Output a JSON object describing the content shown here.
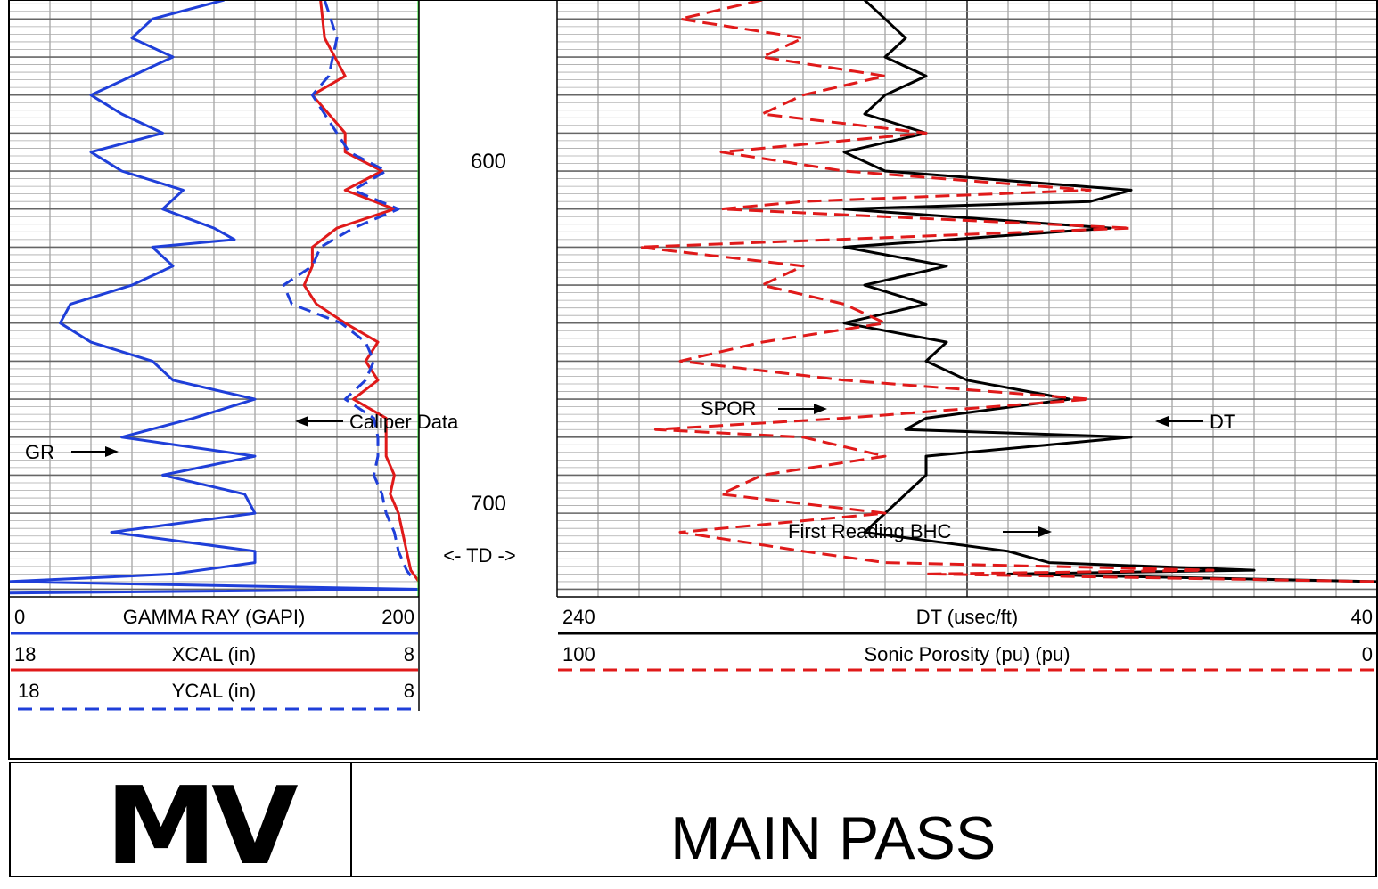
{
  "depth_labels": [
    "600",
    "700"
  ],
  "td_label": "<- TD ->",
  "annotations": {
    "gr": "GR",
    "caliper": "Caliper Data",
    "spor": "SPOR",
    "dt": "DT",
    "first_reading": "First Reading BHC"
  },
  "headers": {
    "left": [
      {
        "min": "0",
        "name": "GAMMA RAY (GAPI)",
        "max": "200",
        "color": "#1f3fd9",
        "style": "solid"
      },
      {
        "min": "18",
        "name": "XCAL (in)",
        "max": "8",
        "color": "#e01a1a",
        "style": "solid"
      },
      {
        "min": "18",
        "name": "YCAL (in)",
        "max": "8",
        "color": "#1f3fd9",
        "style": "dashed"
      }
    ],
    "right": [
      {
        "min": "240",
        "name": "DT (usec/ft)",
        "max": "40",
        "color": "#000000",
        "style": "solid"
      },
      {
        "min": "100",
        "name": "Sonic Porosity (pu) (pu)",
        "max": "0",
        "color": "#e01a1a",
        "style": "dashed"
      }
    ]
  },
  "footer": {
    "logo": "MV",
    "title": "MAIN PASS"
  },
  "colors": {
    "gr": "#1f3fd9",
    "xcal": "#e01a1a",
    "ycal": "#1f3fd9",
    "bit_size": "#22dd22",
    "dt": "#000000",
    "spor": "#e01a1a",
    "grid": "#888888",
    "grid_major": "#666666"
  },
  "chart_data": {
    "type": "line",
    "depth_unit": "ft",
    "depth_range": [
      555,
      712
    ],
    "total_depth": 715,
    "tracks": [
      {
        "series": [
          {
            "name": "GAMMA RAY (GAPI)",
            "scale": [
              0,
              200
            ],
            "points": [
              [
                555,
                105
              ],
              [
                560,
                70
              ],
              [
                565,
                60
              ],
              [
                570,
                80
              ],
              [
                575,
                60
              ],
              [
                580,
                40
              ],
              [
                585,
                55
              ],
              [
                590,
                75
              ],
              [
                595,
                40
              ],
              [
                600,
                55
              ],
              [
                605,
                85
              ],
              [
                610,
                75
              ],
              [
                615,
                100
              ],
              [
                618,
                110
              ],
              [
                620,
                70
              ],
              [
                625,
                80
              ],
              [
                630,
                60
              ],
              [
                635,
                30
              ],
              [
                640,
                25
              ],
              [
                645,
                40
              ],
              [
                650,
                70
              ],
              [
                655,
                80
              ],
              [
                660,
                120
              ],
              [
                665,
                90
              ],
              [
                670,
                55
              ],
              [
                675,
                120
              ],
              [
                680,
                75
              ],
              [
                685,
                115
              ],
              [
                690,
                120
              ],
              [
                695,
                50
              ],
              [
                700,
                120
              ],
              [
                703,
                120
              ],
              [
                706,
                80
              ],
              [
                708,
                0
              ],
              [
                710,
                200
              ],
              [
                711,
                0
              ]
            ]
          },
          {
            "name": "XCAL (in)",
            "scale": [
              18,
              8
            ],
            "points": [
              [
                555,
                10.4
              ],
              [
                565,
                10.3
              ],
              [
                575,
                9.8
              ],
              [
                580,
                10.6
              ],
              [
                585,
                10.2
              ],
              [
                590,
                9.8
              ],
              [
                595,
                9.8
              ],
              [
                600,
                8.9
              ],
              [
                605,
                9.8
              ],
              [
                610,
                8.6
              ],
              [
                615,
                10.0
              ],
              [
                620,
                10.6
              ],
              [
                625,
                10.6
              ],
              [
                630,
                10.8
              ],
              [
                635,
                10.5
              ],
              [
                640,
                9.8
              ],
              [
                645,
                9.0
              ],
              [
                650,
                9.3
              ],
              [
                655,
                9.0
              ],
              [
                660,
                9.6
              ],
              [
                665,
                8.8
              ],
              [
                670,
                8.8
              ],
              [
                675,
                8.8
              ],
              [
                680,
                8.6
              ],
              [
                685,
                8.7
              ],
              [
                690,
                8.5
              ],
              [
                695,
                8.4
              ],
              [
                700,
                8.3
              ],
              [
                705,
                8.2
              ],
              [
                708,
                8.0
              ]
            ]
          },
          {
            "name": "YCAL (in)",
            "scale": [
              18,
              8
            ],
            "points": [
              [
                555,
                10.3
              ],
              [
                565,
                10.0
              ],
              [
                575,
                10.2
              ],
              [
                580,
                10.6
              ],
              [
                585,
                10.3
              ],
              [
                590,
                10.0
              ],
              [
                595,
                9.7
              ],
              [
                600,
                8.8
              ],
              [
                605,
                9.6
              ],
              [
                610,
                8.5
              ],
              [
                615,
                9.6
              ],
              [
                620,
                10.4
              ],
              [
                625,
                10.6
              ],
              [
                630,
                11.3
              ],
              [
                635,
                11.1
              ],
              [
                640,
                9.9
              ],
              [
                645,
                9.3
              ],
              [
                650,
                9.1
              ],
              [
                655,
                9.3
              ],
              [
                660,
                9.8
              ],
              [
                665,
                9.1
              ],
              [
                670,
                9.0
              ],
              [
                675,
                9.0
              ],
              [
                680,
                9.1
              ],
              [
                685,
                8.9
              ],
              [
                690,
                8.8
              ],
              [
                695,
                8.6
              ],
              [
                700,
                8.5
              ],
              [
                705,
                8.3
              ],
              [
                708,
                8.1
              ]
            ]
          },
          {
            "name": "Bit size",
            "scale": [
              18,
              8
            ],
            "points": [
              [
                555,
                8
              ],
              [
                712,
                8
              ]
            ]
          }
        ]
      },
      {
        "series": [
          {
            "name": "DT (usec/ft)",
            "scale": [
              240,
              40
            ],
            "points": [
              [
                555,
                165
              ],
              [
                560,
                160
              ],
              [
                565,
                155
              ],
              [
                570,
                160
              ],
              [
                575,
                150
              ],
              [
                580,
                160
              ],
              [
                585,
                165
              ],
              [
                590,
                150
              ],
              [
                595,
                170
              ],
              [
                600,
                160
              ],
              [
                605,
                100
              ],
              [
                608,
                110
              ],
              [
                610,
                170
              ],
              [
                615,
                105
              ],
              [
                620,
                170
              ],
              [
                625,
                145
              ],
              [
                630,
                165
              ],
              [
                635,
                150
              ],
              [
                640,
                170
              ],
              [
                645,
                145
              ],
              [
                650,
                150
              ],
              [
                655,
                140
              ],
              [
                660,
                115
              ],
              [
                665,
                150
              ],
              [
                668,
                155
              ],
              [
                670,
                100
              ],
              [
                675,
                150
              ],
              [
                680,
                150
              ],
              [
                685,
                155
              ],
              [
                690,
                160
              ],
              [
                695,
                165
              ],
              [
                700,
                130
              ],
              [
                703,
                120
              ],
              [
                705,
                70
              ],
              [
                706,
                130
              ],
              [
                708,
                40
              ]
            ]
          },
          {
            "name": "Sonic Porosity (pu) (pu)",
            "scale": [
              100,
              0
            ],
            "points": [
              [
                555,
                75
              ],
              [
                560,
                85
              ],
              [
                565,
                70
              ],
              [
                570,
                75
              ],
              [
                575,
                60
              ],
              [
                580,
                70
              ],
              [
                585,
                75
              ],
              [
                590,
                55
              ],
              [
                595,
                80
              ],
              [
                600,
                65
              ],
              [
                605,
                35
              ],
              [
                608,
                70
              ],
              [
                610,
                80
              ],
              [
                615,
                30
              ],
              [
                620,
                90
              ],
              [
                625,
                70
              ],
              [
                630,
                75
              ],
              [
                635,
                65
              ],
              [
                640,
                60
              ],
              [
                645,
                75
              ],
              [
                650,
                85
              ],
              [
                655,
                65
              ],
              [
                660,
                35
              ],
              [
                665,
                65
              ],
              [
                668,
                88
              ],
              [
                670,
                70
              ],
              [
                675,
                60
              ],
              [
                680,
                75
              ],
              [
                685,
                80
              ],
              [
                690,
                60
              ],
              [
                695,
                85
              ],
              [
                700,
                70
              ],
              [
                703,
                60
              ],
              [
                705,
                20
              ],
              [
                706,
                55
              ],
              [
                708,
                0
              ]
            ]
          }
        ]
      }
    ]
  }
}
